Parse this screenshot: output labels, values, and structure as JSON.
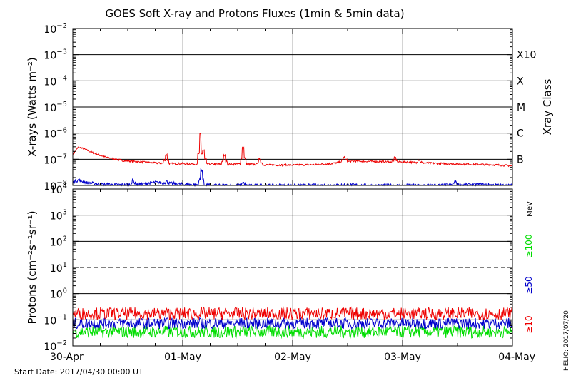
{
  "title": "GOES Soft X-ray and Protons Fluxes   (1min & 5min data)",
  "start_date": "Start Date: 2017/04/30 00:00 UT",
  "credit": "HELIO: 2017/07/20",
  "colors": {
    "xray_long": "#ee0000",
    "xray_short": "#0000cc",
    "proton_10": "#ee0000",
    "proton_50": "#0000cc",
    "proton_100": "#00dd00",
    "grid": "#000000",
    "day_grid": "#a8a8a8",
    "frame": "#000000"
  },
  "chart_data": [
    {
      "type": "line",
      "name": "xrays",
      "ylabel": "X-rays (Watts m⁻²)",
      "yscale": "log",
      "ylim": [
        1e-08,
        0.01
      ],
      "ytick_exponents": [
        -8,
        -7,
        -6,
        -5,
        -4,
        -3,
        -2
      ],
      "xlim": [
        "2017-04-30 00:00",
        "2017-05-04 00:00"
      ],
      "xticks": [
        "30-Apr",
        "01-May",
        "02-May",
        "03-May",
        "04-May"
      ],
      "right_axis_label": "Xray Class",
      "class_labels": [
        {
          "label": "B",
          "value": 1e-07
        },
        {
          "label": "C",
          "value": 1e-06
        },
        {
          "label": "M",
          "value": 1e-05
        },
        {
          "label": "X",
          "value": 0.0001
        },
        {
          "label": "X10",
          "value": 0.001
        }
      ],
      "series": [
        {
          "color": "red",
          "x_days": [
            0,
            0.05,
            0.1,
            0.18,
            0.3,
            0.45,
            0.6,
            0.75,
            0.85,
            0.9,
            1.0,
            1.1,
            1.17,
            1.2,
            1.3,
            1.38,
            1.45,
            1.55,
            1.7,
            1.85,
            2.0,
            2.2,
            2.35,
            2.45,
            2.55,
            2.7,
            2.9,
            3.05,
            3.2,
            3.4,
            3.6,
            3.8,
            3.95,
            4.0
          ],
          "y": [
            1.5e-07,
            2.9e-07,
            2.5e-07,
            1.8e-07,
            1.2e-07,
            9e-08,
            8e-08,
            7.2e-08,
            7e-08,
            6.8e-08,
            6.8e-08,
            6.6e-08,
            6.5e-08,
            6.6e-08,
            6.5e-08,
            6.4e-08,
            6.5e-08,
            6.6e-08,
            6.2e-08,
            6e-08,
            6e-08,
            6.2e-08,
            6.8e-08,
            8e-08,
            8.5e-08,
            8.3e-08,
            8e-08,
            7.8e-08,
            7.2e-08,
            6.8e-08,
            6.5e-08,
            6.2e-08,
            5.8e-08,
            5.5e-08
          ],
          "peaks": [
            {
              "x_day": 0.85,
              "y": 1.5e-07
            },
            {
              "x_day": 1.16,
              "y": 9e-07
            },
            {
              "x_day": 1.19,
              "y": 2.2e-07
            },
            {
              "x_day": 1.38,
              "y": 1.4e-07
            },
            {
              "x_day": 1.55,
              "y": 2.8e-07
            },
            {
              "x_day": 1.7,
              "y": 1e-07
            },
            {
              "x_day": 2.47,
              "y": 1.2e-07
            },
            {
              "x_day": 2.93,
              "y": 1.15e-07
            },
            {
              "x_day": 3.15,
              "y": 9.5e-08
            }
          ]
        },
        {
          "color": "blue",
          "x_days": [
            0,
            0.05,
            0.12,
            0.25,
            0.4,
            0.6,
            0.75,
            0.9,
            1.0,
            1.16,
            1.3,
            1.5,
            1.7,
            1.9,
            2.1,
            2.3,
            2.5,
            2.7,
            2.9,
            3.1,
            3.3,
            3.5,
            3.7,
            3.9,
            4.0
          ],
          "y": [
            1.3e-08,
            1.6e-08,
            1.3e-08,
            1.1e-08,
            1.05e-08,
            1.1e-08,
            1.3e-08,
            1.2e-08,
            1.1e-08,
            1.05e-08,
            1e-08,
            1e-08,
            1e-08,
            1e-08,
            1e-08,
            1.02e-08,
            1.05e-08,
            1e-08,
            1e-08,
            1e-08,
            1e-08,
            1.05e-08,
            1.1e-08,
            1e-08,
            1e-08
          ],
          "peaks": [
            {
              "x_day": 0.55,
              "y": 1.5e-08
            },
            {
              "x_day": 0.85,
              "y": 1.4e-08
            },
            {
              "x_day": 1.17,
              "y": 4e-08
            },
            {
              "x_day": 1.55,
              "y": 1.3e-08
            },
            {
              "x_day": 3.48,
              "y": 1.5e-08
            }
          ]
        }
      ]
    },
    {
      "type": "line",
      "name": "protons",
      "ylabel": "Protons (cm⁻²s⁻¹sr⁻¹)",
      "yscale": "log",
      "ylim": [
        0.01,
        10000
      ],
      "ytick_exponents": [
        -2,
        -1,
        0,
        1,
        2,
        3,
        4
      ],
      "xlim": [
        "2017-04-30 00:00",
        "2017-05-04 00:00"
      ],
      "xticks": [
        "30-Apr",
        "01-May",
        "02-May",
        "03-May",
        "04-May"
      ],
      "threshold_line": 10,
      "unit_label": "MeV",
      "series": [
        {
          "name": "≥10",
          "color": "red",
          "level": 0.17,
          "noise_low": 0.1,
          "noise_high": 0.3
        },
        {
          "name": "≥50",
          "color": "blue",
          "level": 0.075,
          "noise_low": 0.045,
          "noise_high": 0.12
        },
        {
          "name": "≥100",
          "color": "green",
          "level": 0.035,
          "noise_low": 0.02,
          "noise_high": 0.06
        }
      ]
    }
  ]
}
